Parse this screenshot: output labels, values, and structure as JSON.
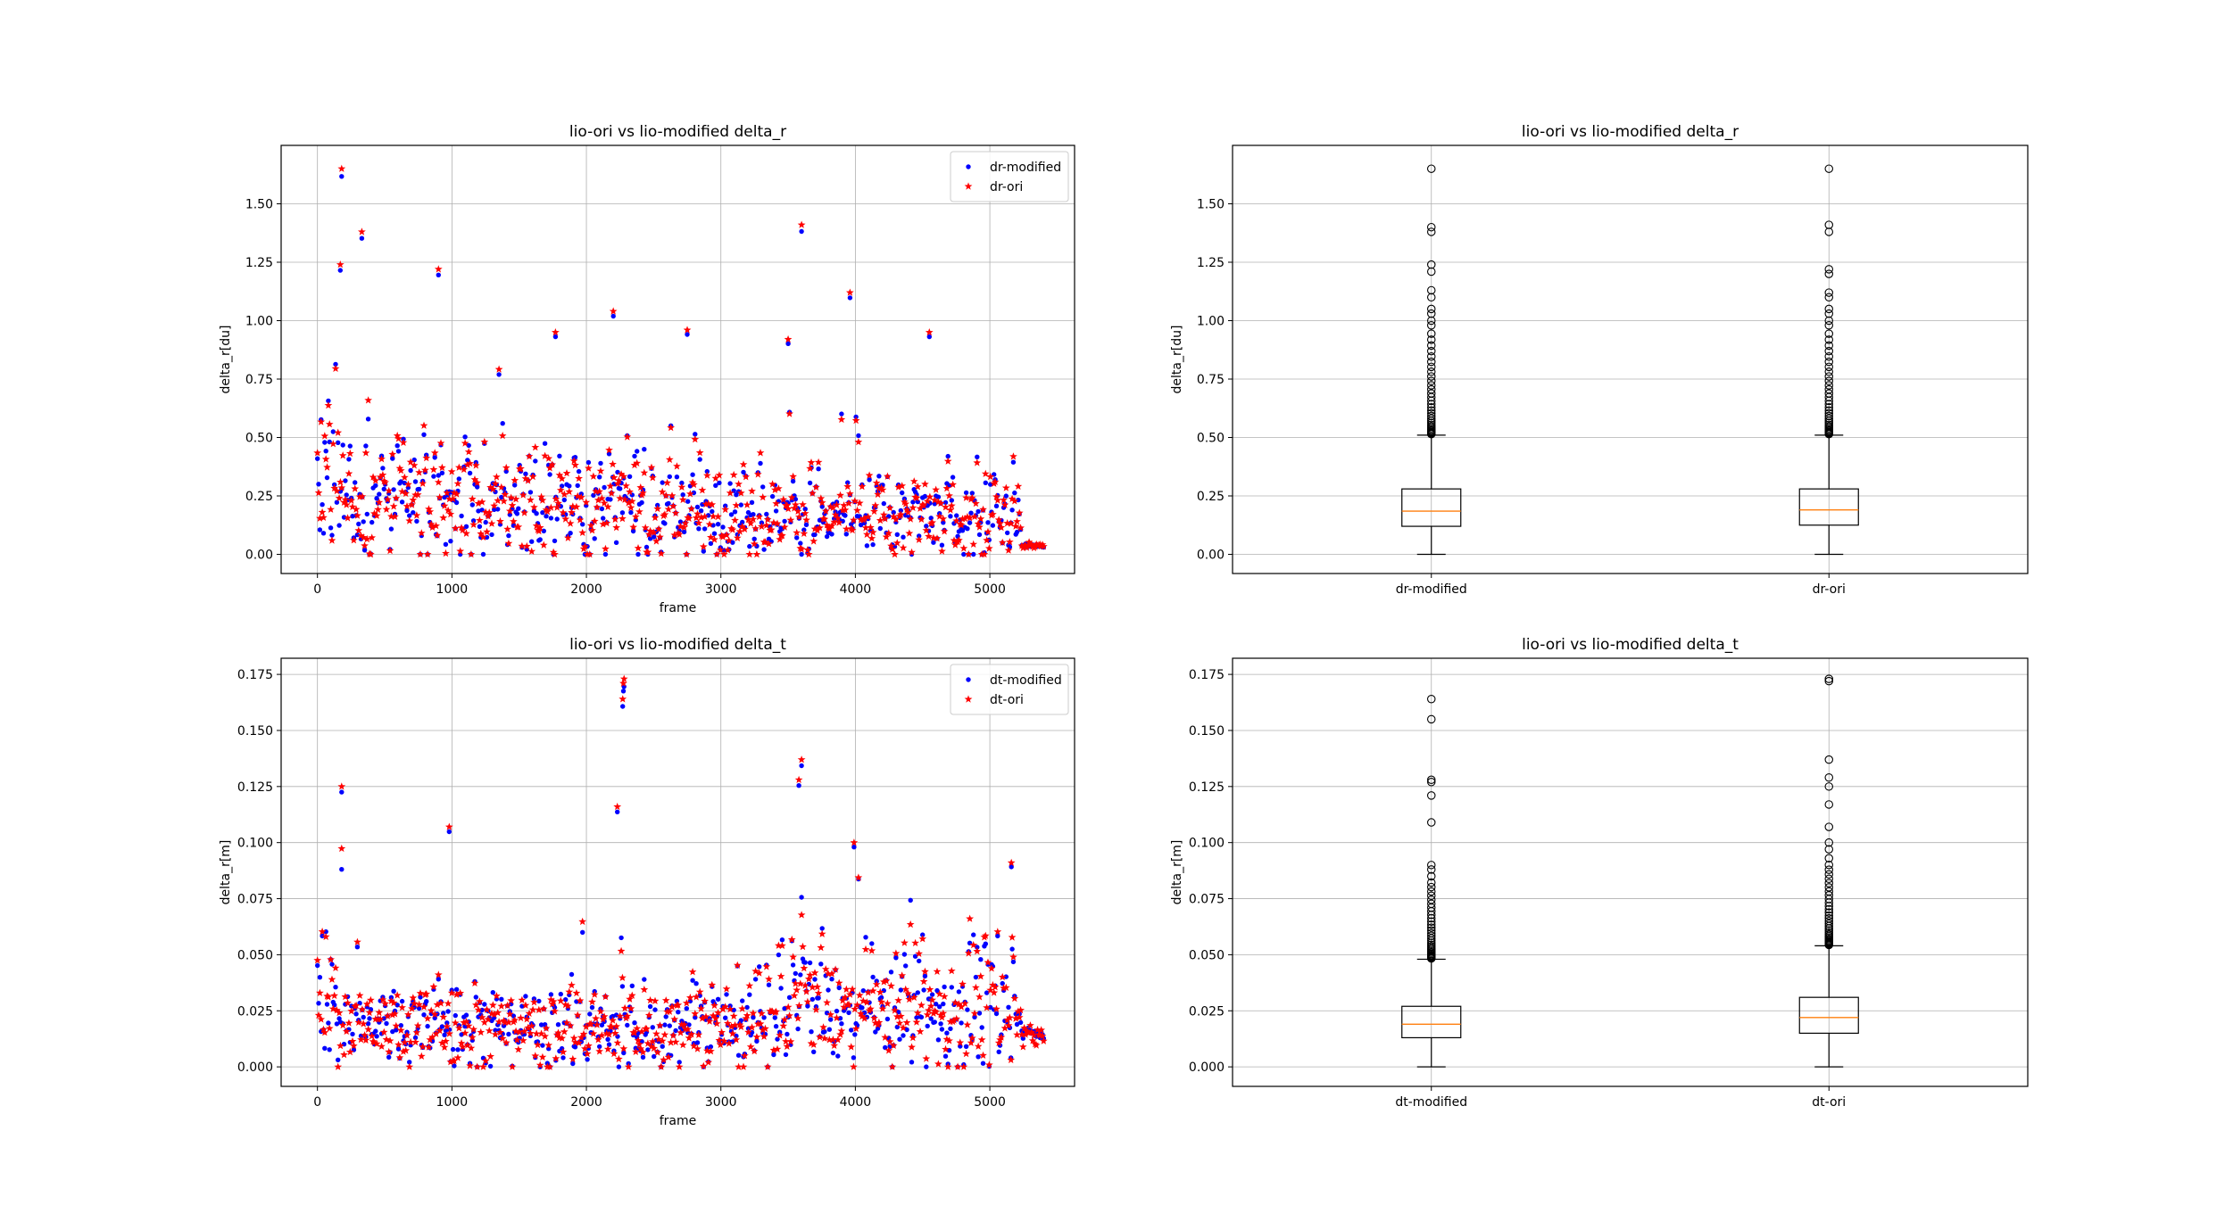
{
  "chart_data": [
    {
      "type": "scatter",
      "title": "lio-ori vs lio-modified delta_r",
      "xlabel": "frame",
      "ylabel": "delta_r[du]",
      "xlim": [
        -270,
        5630
      ],
      "ylim": [
        -0.082,
        1.75
      ],
      "xticks": [
        0,
        1000,
        2000,
        3000,
        4000,
        5000
      ],
      "yticks": [
        0.0,
        0.25,
        0.5,
        0.75,
        1.0,
        1.25,
        1.5
      ],
      "ytick_labels": [
        "0.00",
        "0.25",
        "0.50",
        "0.75",
        "1.00",
        "1.25",
        "1.50"
      ],
      "grid": true,
      "legend": "upper right",
      "series": [
        {
          "name": "dr-modified",
          "color": "#0000ff",
          "marker": "dot"
        },
        {
          "name": "dr-ori",
          "color": "#ff0000",
          "marker": "star"
        }
      ],
      "n_frames": 5400,
      "outliers": [
        [
          180,
          1.65
        ],
        [
          330,
          1.38
        ],
        [
          170,
          1.24
        ],
        [
          900,
          1.22
        ],
        [
          3600,
          1.41
        ],
        [
          3960,
          1.12
        ],
        [
          2200,
          1.04
        ],
        [
          4550,
          0.95
        ],
        [
          2750,
          0.96
        ],
        [
          1770,
          0.95
        ],
        [
          3500,
          0.92
        ]
      ]
    },
    {
      "type": "box",
      "title": "lio-ori vs lio-modified delta_r",
      "xlabel": "",
      "ylabel": "delta_r[du]",
      "ylim": [
        -0.082,
        1.75
      ],
      "yticks": [
        0.0,
        0.25,
        0.5,
        0.75,
        1.0,
        1.25,
        1.5
      ],
      "ytick_labels": [
        "0.00",
        "0.25",
        "0.50",
        "0.75",
        "1.00",
        "1.25",
        "1.50"
      ],
      "grid": true,
      "categories": [
        "dr-modified",
        "dr-ori"
      ],
      "boxes": [
        {
          "name": "dr-modified",
          "min": 0.0,
          "q1": 0.12,
          "median": 0.185,
          "q3": 0.28,
          "whisker_high": 0.51,
          "fliers": [
            1.65,
            1.4,
            1.38,
            1.24,
            1.21,
            1.13,
            1.1,
            1.05,
            1.03,
            1.0,
            0.98
          ]
        },
        {
          "name": "dr-ori",
          "min": 0.0,
          "q1": 0.125,
          "median": 0.19,
          "q3": 0.28,
          "whisker_high": 0.51,
          "fliers": [
            1.65,
            1.41,
            1.38,
            1.22,
            1.2,
            1.12,
            1.1,
            1.05,
            1.03,
            1.0,
            0.98
          ]
        }
      ]
    },
    {
      "type": "scatter",
      "title": "lio-ori vs lio-modified delta_t",
      "xlabel": "frame",
      "ylabel": "delta_r[m]",
      "xlim": [
        -270,
        5630
      ],
      "ylim": [
        -0.0087,
        0.1822
      ],
      "xticks": [
        0,
        1000,
        2000,
        3000,
        4000,
        5000
      ],
      "yticks": [
        0.0,
        0.025,
        0.05,
        0.075,
        0.1,
        0.125,
        0.15,
        0.175
      ],
      "ytick_labels": [
        "0.000",
        "0.025",
        "0.050",
        "0.075",
        "0.100",
        "0.125",
        "0.150",
        "0.175"
      ],
      "grid": true,
      "legend": "upper right",
      "series": [
        {
          "name": "dt-modified",
          "color": "#0000ff",
          "marker": "dot"
        },
        {
          "name": "dt-ori",
          "color": "#ff0000",
          "marker": "star"
        }
      ],
      "n_frames": 5400,
      "outliers": [
        [
          2280,
          0.173
        ],
        [
          2275,
          0.171
        ],
        [
          2270,
          0.164
        ],
        [
          3600,
          0.137
        ],
        [
          3580,
          0.128
        ],
        [
          180,
          0.125
        ],
        [
          2230,
          0.116
        ],
        [
          980,
          0.107
        ],
        [
          3990,
          0.1
        ],
        [
          5160,
          0.091
        ]
      ]
    },
    {
      "type": "box",
      "title": "lio-ori vs lio-modified delta_t",
      "xlabel": "",
      "ylabel": "delta_r[m]",
      "ylim": [
        -0.0087,
        0.1822
      ],
      "yticks": [
        0.0,
        0.025,
        0.05,
        0.075,
        0.1,
        0.125,
        0.15,
        0.175
      ],
      "ytick_labels": [
        "0.000",
        "0.025",
        "0.050",
        "0.075",
        "0.100",
        "0.125",
        "0.150",
        "0.175"
      ],
      "grid": true,
      "categories": [
        "dt-modified",
        "dt-ori"
      ],
      "boxes": [
        {
          "name": "dt-modified",
          "min": 0.0,
          "q1": 0.013,
          "median": 0.019,
          "q3": 0.027,
          "whisker_high": 0.048,
          "fliers": [
            0.164,
            0.155,
            0.128,
            0.127,
            0.121,
            0.109,
            0.09,
            0.088,
            0.085
          ]
        },
        {
          "name": "dt-ori",
          "min": 0.0,
          "q1": 0.015,
          "median": 0.022,
          "q3": 0.031,
          "whisker_high": 0.054,
          "fliers": [
            0.173,
            0.172,
            0.137,
            0.129,
            0.125,
            0.117,
            0.107,
            0.1,
            0.097,
            0.093
          ]
        }
      ]
    }
  ]
}
